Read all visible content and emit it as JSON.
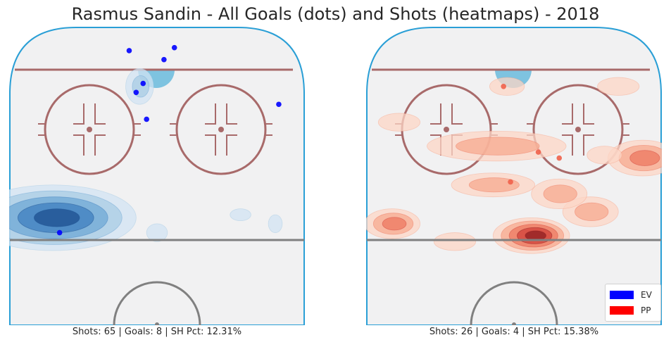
{
  "title": "Rasmus Sandin - All Goals (dots) and Shots (heatmaps) - 2018",
  "colors": {
    "ice": "#f1f1f2",
    "boards": "#2a9fd6",
    "goal_line": "#a86a6a",
    "faceoff": "#a86a6a",
    "blue_line": "#808080",
    "crease": "#7ec3e0",
    "ev": "#0000ff",
    "pp": "#ff0000"
  },
  "legend": {
    "placement": "bottom-right",
    "entries": [
      {
        "label": "EV",
        "color": "#0000ff"
      },
      {
        "label": "PP",
        "color": "#ff0000"
      }
    ]
  },
  "chart_data": [
    {
      "type": "scatter",
      "name": "EV",
      "caption": "Shots: 65 | Goals: 8 | SH Pct: 12.31%",
      "stats": {
        "shots": 65,
        "goals": 8,
        "sh_pct": "12.31%"
      },
      "xlim": [
        -42.5,
        42.5
      ],
      "ylim": [
        0,
        100
      ],
      "heatmap_color": "blue",
      "goals": [
        {
          "x": -8,
          "y": 92
        },
        {
          "x": 5,
          "y": 93
        },
        {
          "x": 2,
          "y": 89
        },
        {
          "x": -4,
          "y": 81
        },
        {
          "x": -6,
          "y": 78
        },
        {
          "x": 35,
          "y": 74
        },
        {
          "x": -3,
          "y": 69
        },
        {
          "x": -28,
          "y": 31
        }
      ],
      "shot_clusters": [
        {
          "x": -30,
          "y": 36,
          "levels": 5,
          "spread": [
            24,
            11
          ]
        },
        {
          "x": -5,
          "y": 80,
          "levels": 2,
          "spread": [
            4,
            6
          ]
        },
        {
          "x": 0,
          "y": 31,
          "levels": 1,
          "spread": [
            3,
            3
          ]
        },
        {
          "x": 24,
          "y": 37,
          "levels": 1,
          "spread": [
            3,
            2
          ]
        },
        {
          "x": 34,
          "y": 34,
          "levels": 1,
          "spread": [
            2,
            3
          ]
        }
      ]
    },
    {
      "type": "scatter",
      "name": "PP",
      "caption": "Shots: 26 | Goals: 4 | SH Pct: 15.38%",
      "stats": {
        "shots": 26,
        "goals": 4,
        "sh_pct": "15.38%"
      },
      "xlim": [
        -42.5,
        42.5
      ],
      "ylim": [
        0,
        100
      ],
      "heatmap_color": "red",
      "goals": [
        {
          "x": -3,
          "y": 80
        },
        {
          "x": 7,
          "y": 58
        },
        {
          "x": 13,
          "y": 56
        },
        {
          "x": -1,
          "y": 48
        }
      ],
      "shot_clusters": [
        {
          "x": 5,
          "y": 30,
          "levels": 5,
          "spread": [
            11,
            6
          ]
        },
        {
          "x": -35,
          "y": 34,
          "levels": 3,
          "spread": [
            8,
            5
          ]
        },
        {
          "x": 37,
          "y": 56,
          "levels": 3,
          "spread": [
            10,
            6
          ]
        },
        {
          "x": 22,
          "y": 38,
          "levels": 2,
          "spread": [
            8,
            5
          ]
        },
        {
          "x": -6,
          "y": 47,
          "levels": 2,
          "spread": [
            12,
            4
          ]
        },
        {
          "x": 13,
          "y": 44,
          "levels": 2,
          "spread": [
            8,
            5
          ]
        },
        {
          "x": -5,
          "y": 60,
          "levels": 2,
          "spread": [
            20,
            5
          ]
        },
        {
          "x": 26,
          "y": 57,
          "levels": 1,
          "spread": [
            5,
            3
          ]
        },
        {
          "x": -33,
          "y": 68,
          "levels": 1,
          "spread": [
            6,
            3
          ]
        },
        {
          "x": 30,
          "y": 80,
          "levels": 1,
          "spread": [
            6,
            3
          ]
        },
        {
          "x": -2,
          "y": 80,
          "levels": 1,
          "spread": [
            5,
            3
          ]
        },
        {
          "x": -17,
          "y": 28,
          "levels": 1,
          "spread": [
            6,
            3
          ]
        }
      ]
    }
  ]
}
